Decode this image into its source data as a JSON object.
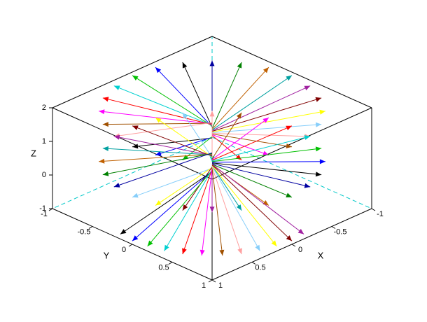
{
  "chart_data": {
    "type": "quiver3d",
    "xlabel": "X",
    "ylabel": "Y",
    "zlabel": "Z",
    "xlim": [
      -1,
      1
    ],
    "ylim": [
      -1,
      1
    ],
    "zlim": [
      -1,
      2
    ],
    "xticks": [
      -1,
      -0.5,
      0,
      0.5,
      1
    ],
    "yticks": [
      -1,
      -0.5,
      0,
      0.5,
      1
    ],
    "zticks": [
      -1,
      0,
      1,
      2
    ],
    "colors": [
      "#000000",
      "#0000ff",
      "#00c000",
      "#00d0d0",
      "#ff0000",
      "#ff00ff",
      "#a05000",
      "#ffa0a0",
      "#87cefa",
      "#ffff00",
      "#800000",
      "#a020a0",
      "#00a0a0",
      "#c06000",
      "#008000",
      "#0000a0"
    ],
    "x0": [
      0,
      0,
      0,
      0,
      0,
      0,
      0,
      0,
      0,
      0,
      0,
      0,
      0,
      0,
      0,
      0,
      0,
      0,
      0,
      0,
      0,
      0,
      0,
      0,
      0,
      0,
      0,
      0,
      0,
      0,
      0,
      0,
      0,
      0,
      0,
      0,
      0,
      0,
      0,
      0,
      0,
      0,
      0,
      0,
      0,
      0,
      0,
      0,
      0,
      0,
      0,
      0,
      0,
      0,
      0,
      0,
      0,
      0,
      0,
      0
    ],
    "y0": [
      0,
      0,
      0,
      0,
      0,
      0,
      0,
      0,
      0,
      0,
      0,
      0,
      0,
      0,
      0,
      0,
      0,
      0,
      0,
      0,
      0,
      0,
      0,
      0,
      0,
      0,
      0,
      0,
      0,
      0,
      0,
      0,
      0,
      0,
      0,
      0,
      0,
      0,
      0,
      0,
      0,
      0,
      0,
      0,
      0,
      0,
      0,
      0,
      0,
      0,
      0,
      0,
      0,
      0,
      0,
      0,
      0,
      0,
      0,
      0
    ],
    "z0": [
      1.1,
      1.12,
      1.14,
      1.16,
      1.18,
      1.2,
      1.22,
      1.24,
      1.26,
      1.28,
      1.3,
      1.32,
      1.34,
      1.36,
      1.38,
      1.4,
      1.42,
      1.44,
      1.46,
      1.48,
      1.5,
      1.52,
      1.54,
      1.56,
      0.2,
      0.22,
      0.24,
      0.26,
      0.28,
      0.3,
      0.32,
      0.34,
      0.36,
      0.38,
      0.4,
      0.42,
      0.44,
      0.46,
      0.48,
      0.5,
      0.52,
      0.54,
      0.56,
      0.58,
      0.6,
      0.62,
      0.64,
      0.66,
      0.1,
      0.12,
      0.14,
      0.16,
      0.18,
      0.2,
      0.22,
      0.24,
      0.26,
      0.28,
      0.3,
      0.32
    ],
    "x1": [
      1,
      0.97,
      0.87,
      0.71,
      0.5,
      0.26,
      0,
      -0.26,
      -0.5,
      -0.71,
      -0.87,
      -0.97,
      -1,
      -0.97,
      -0.87,
      -0.71,
      -0.5,
      -0.26,
      0,
      0.26,
      0.5,
      0.71,
      0.87,
      0.97,
      1,
      0.97,
      0.87,
      0.71,
      0.5,
      0.26,
      0,
      -0.26,
      -0.5,
      -0.71,
      -0.87,
      -0.97,
      -1,
      -0.97,
      -0.87,
      -0.71,
      -0.5,
      -0.26,
      0,
      0.26,
      0.5,
      0.71,
      0.87,
      0.97,
      0.98,
      1,
      0.98,
      0.94,
      0.87,
      0.77,
      0.64,
      0.5,
      0.34,
      0.17,
      0,
      -0.17
    ],
    "y1": [
      0,
      0.26,
      0.5,
      0.71,
      0.87,
      0.97,
      1,
      0.97,
      0.87,
      0.71,
      0.5,
      0.26,
      0,
      -0.26,
      -0.5,
      -0.71,
      -0.87,
      -0.97,
      -1,
      -0.97,
      -0.87,
      -0.71,
      -0.5,
      -0.26,
      0,
      0.26,
      0.5,
      0.71,
      0.87,
      0.97,
      1,
      0.97,
      0.87,
      0.71,
      0.5,
      0.26,
      0,
      -0.26,
      -0.5,
      -0.71,
      -0.87,
      -0.97,
      -1,
      -0.97,
      -0.87,
      -0.71,
      -0.5,
      -0.26,
      -0.17,
      0,
      0.17,
      0.34,
      0.5,
      0.64,
      0.77,
      0.87,
      0.94,
      0.98,
      1,
      0.98
    ],
    "z1": [
      1.9,
      1.9,
      1.9,
      1.9,
      1.9,
      1.9,
      1.9,
      1.9,
      1.9,
      1.9,
      1.9,
      1.9,
      1.9,
      1.9,
      1.9,
      1.9,
      1.9,
      1.9,
      1.9,
      1.9,
      1.9,
      1.9,
      1.9,
      1.9,
      0.4,
      0.4,
      0.4,
      0.4,
      0.4,
      0.4,
      0.4,
      0.4,
      0.4,
      0.4,
      0.4,
      0.4,
      0.4,
      0.4,
      0.4,
      0.4,
      0.4,
      0.4,
      0.4,
      0.4,
      0.4,
      0.4,
      0.4,
      0.4,
      -0.9,
      -0.9,
      -0.9,
      -0.9,
      -0.9,
      -0.9,
      -0.9,
      -0.9,
      -0.9,
      -0.9,
      -0.9,
      -0.9
    ]
  }
}
